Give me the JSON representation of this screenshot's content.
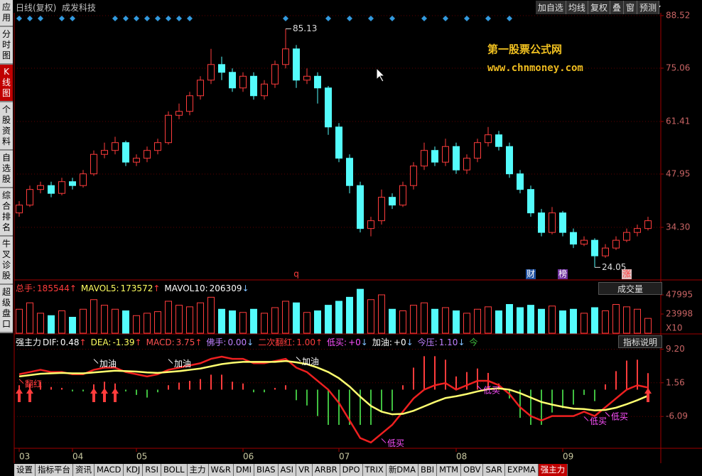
{
  "header": {
    "title": "日线(复权)",
    "stock": "成发科技",
    "buttons": [
      "加自选",
      "均线",
      "复权",
      "叠",
      "窗",
      "预测"
    ]
  },
  "sidebar": [
    "应用",
    "分时图",
    "K线图",
    "个股资料",
    "自选股",
    "综合排名",
    "牛叉诊股",
    "超级盘口"
  ],
  "tabs": [
    "设置",
    "指标平台",
    "资讯",
    "MACD",
    "KDJ",
    "RSI",
    "BOLL",
    "主力",
    "W&R",
    "DMI",
    "BIAS",
    "ASI",
    "VR",
    "ARBR",
    "DPO",
    "TRIX",
    "新DMA",
    "BBI",
    "MTM",
    "OBV",
    "SAR",
    "EXPMA",
    "强主力"
  ],
  "watermark": [
    "第一股票公式网",
    "www.chnmoney.com"
  ],
  "chart_data": [
    {
      "type": "candlestick",
      "up_color": "#ff3c3c",
      "down_color": "#54fcfc",
      "signal_color": "#3399dd",
      "ylim": [
        21.02,
        88.88
      ],
      "yticks": [
        {
          "value": 34.3,
          "label": "34.30"
        },
        47.95,
        61.41,
        75.06,
        88.52
      ],
      "ohlc": [
        [
          38,
          41,
          37,
          40
        ],
        [
          40,
          45,
          39.5,
          44
        ],
        [
          44,
          46,
          43,
          45
        ],
        [
          45,
          46,
          42,
          43
        ],
        [
          43,
          47,
          42.5,
          46
        ],
        [
          46,
          47,
          44,
          45
        ],
        [
          45,
          49,
          44.5,
          48
        ],
        [
          48,
          54,
          47.5,
          53
        ],
        [
          53,
          56,
          52,
          54
        ],
        [
          54,
          57.5,
          53,
          56
        ],
        [
          56,
          56.5,
          50,
          51
        ],
        [
          51,
          53,
          50,
          52
        ],
        [
          52,
          55,
          51,
          54
        ],
        [
          54,
          57,
          53,
          56
        ],
        [
          56,
          64,
          55.5,
          63
        ],
        [
          63,
          66,
          62,
          64
        ],
        [
          64,
          69,
          63,
          68
        ],
        [
          68,
          73,
          67,
          72
        ],
        [
          72,
          80,
          71,
          76
        ],
        [
          76,
          78,
          72,
          74
        ],
        [
          74,
          75,
          69,
          70
        ],
        [
          70,
          74,
          69,
          73
        ],
        [
          73,
          74,
          67,
          68
        ],
        [
          68,
          72,
          67,
          71
        ],
        [
          71,
          77,
          70,
          76
        ],
        [
          76,
          85.13,
          75,
          80
        ],
        [
          80,
          81,
          70,
          72
        ],
        [
          72,
          75,
          71,
          73
        ],
        [
          73,
          74,
          66,
          70
        ],
        [
          70,
          70.5,
          58,
          60
        ],
        [
          60,
          61,
          51,
          52
        ],
        [
          52,
          53,
          43,
          45
        ],
        [
          45,
          46,
          33,
          34
        ],
        [
          34,
          37,
          32,
          36
        ],
        [
          36,
          44,
          35,
          42
        ],
        [
          42,
          43,
          39,
          40
        ],
        [
          40,
          46,
          39.5,
          45
        ],
        [
          45,
          51,
          44,
          50
        ],
        [
          50,
          56,
          49,
          54
        ],
        [
          54,
          55,
          50,
          51
        ],
        [
          51,
          57,
          50,
          55
        ],
        [
          55,
          56,
          48,
          49
        ],
        [
          49,
          53,
          48,
          52
        ],
        [
          52,
          57,
          51,
          56
        ],
        [
          56,
          60,
          55,
          58
        ],
        [
          58,
          59,
          54,
          55
        ],
        [
          55,
          56,
          47,
          48
        ],
        [
          48,
          49,
          43,
          44
        ],
        [
          44,
          45,
          37,
          38
        ],
        [
          38,
          39,
          32,
          33
        ],
        [
          33,
          39.5,
          32.5,
          38
        ],
        [
          38,
          38.5,
          32,
          33
        ],
        [
          33,
          34,
          29,
          30
        ],
        [
          30,
          32,
          29.5,
          31
        ],
        [
          31,
          31.5,
          24.05,
          27
        ],
        [
          27,
          30,
          26.5,
          29
        ],
        [
          29,
          32,
          28.5,
          31
        ],
        [
          31,
          34,
          30.5,
          33
        ],
        [
          33,
          35,
          32,
          34
        ],
        [
          34,
          37,
          33.5,
          36
        ]
      ],
      "high_index": 25,
      "low_index": 54,
      "markers": [
        {
          "label": "q",
          "x": 26,
          "color": "#ff3c3c",
          "bg": "#000000"
        },
        {
          "label": "财",
          "x": 48,
          "color": "#ffffff",
          "bg": "#2050a0"
        },
        {
          "label": "榜",
          "x": 51,
          "color": "#ffffff",
          "bg": "#7030a0"
        },
        {
          "label": "涨",
          "x": 57,
          "color": "#ff3c3c",
          "bg": "#e0c0c0"
        }
      ],
      "signal_days": [
        0,
        1,
        2,
        4,
        5,
        9,
        10,
        11,
        12,
        13,
        14,
        15,
        16,
        25,
        29,
        31,
        33,
        35,
        38,
        40,
        42,
        44,
        46
      ]
    },
    {
      "type": "bar",
      "ylim": [
        0,
        64000
      ],
      "yticks": [
        23998,
        47995
      ],
      "unit": "X10",
      "selector": "成交量",
      "legend": [
        {
          "label": "总手:",
          "value": 185544,
          "trend": "↑",
          "color": "#ff3c3c"
        },
        {
          "label": "MAVOL5:",
          "value": 173572,
          "trend": "↑",
          "color": "#ffff60"
        },
        {
          "label": "MAVOL10:",
          "value": 206309,
          "trend": "↓",
          "color": "#ffffff"
        }
      ],
      "values": [
        30000,
        38000,
        25000,
        22000,
        28000,
        20000,
        30000,
        42000,
        35000,
        30000,
        28000,
        22000,
        25000,
        27000,
        40000,
        35000,
        33000,
        38000,
        45000,
        30000,
        28000,
        26000,
        30000,
        25000,
        32000,
        40000,
        38000,
        26000,
        28000,
        35000,
        40000,
        45000,
        55000,
        42000,
        48000,
        30000,
        28000,
        35000,
        38000,
        30000,
        32000,
        28000,
        25000,
        30000,
        33000,
        28000,
        36000,
        32000,
        35000,
        30000,
        34000,
        28000,
        30000,
        25000,
        32000,
        28000,
        36000,
        33000,
        30000,
        18554
      ]
    },
    {
      "type": "line",
      "help": "指标说明",
      "ylim": [
        -13.16,
        11.37
      ],
      "yticks": [
        -6.09,
        1.56,
        {
          "value": 9.2,
          "label": "9.20"
        }
      ],
      "legend": [
        {
          "label": "强主力",
          "color": "#ffffff"
        },
        {
          "label": "DIF:",
          "value": 0.48,
          "trend": "↑",
          "color": "#ffffff"
        },
        {
          "label": "DEA:",
          "value": -1.39,
          "trend": "↑",
          "color": "#ffff60"
        },
        {
          "label": "MACD:",
          "value": 3.75,
          "trend": "↑",
          "color": "#ff5050"
        },
        {
          "label": "佛手:",
          "value": "0.00",
          "trend": "↓",
          "color": "#c080ff"
        },
        {
          "label": "二次翻红:",
          "value": "1.00",
          "trend": "↑",
          "color": "#ff3c3c"
        },
        {
          "label": "低买:",
          "value": "+0",
          "trend": "↓",
          "color": "#ff50ff"
        },
        {
          "label": "加油:",
          "value": "+0",
          "trend": "↓",
          "color": "#ffffff"
        },
        {
          "label": "今压:",
          "value": "1.10",
          "trend": "↓",
          "color": "#c080ff"
        },
        {
          "label": "今",
          "color": "#40c040"
        }
      ],
      "series": [
        {
          "color": "#ee2020",
          "values": [
            3.5,
            4,
            4.5,
            4,
            4,
            3.5,
            3.5,
            4.5,
            5,
            5,
            4,
            3.5,
            3,
            3.5,
            4.5,
            5,
            5.5,
            6,
            7,
            7.5,
            7,
            7,
            6,
            6,
            6.5,
            7,
            5,
            4,
            2,
            0,
            -3,
            -7,
            -11,
            -12,
            -10,
            -8,
            -5,
            -2,
            0,
            1,
            1.5,
            0,
            1,
            2,
            2,
            1,
            -1,
            -4,
            -6,
            -7,
            -6,
            -6,
            -6,
            -5,
            -6,
            -4,
            -2,
            0,
            1,
            0.48
          ]
        },
        {
          "color": "#ffff70",
          "values": [
            3,
            3.3,
            3.6,
            3.7,
            3.8,
            3.7,
            3.7,
            3.9,
            4.1,
            4.3,
            4.2,
            4.1,
            3.9,
            3.8,
            4,
            4.2,
            4.5,
            4.8,
            5.3,
            5.8,
            6.1,
            6.3,
            6.3,
            6.3,
            6.3,
            6.5,
            6.2,
            5.8,
            5,
            4,
            2.6,
            0.7,
            -1.6,
            -3.7,
            -5,
            -5.6,
            -5.5,
            -4.8,
            -3.8,
            -2.8,
            -1.9,
            -1.5,
            -1,
            -0.4,
            0.1,
            0.3,
            0,
            -0.8,
            -1.8,
            -2.8,
            -3.4,
            -3.9,
            -4.3,
            -4.4,
            -4.7,
            -4.6,
            -4.1,
            -3.3,
            -2.4,
            -1.39
          ]
        }
      ],
      "histogram": [
        1,
        1.4,
        1.8,
        0.6,
        0.4,
        -0.4,
        -0.4,
        1.2,
        1.8,
        1.4,
        -0.4,
        -1.2,
        -1.8,
        -0.6,
        1,
        1.6,
        2,
        2.4,
        3.4,
        3.4,
        1.8,
        1.4,
        -0.6,
        -0.6,
        0.4,
        1,
        -2.4,
        -3.6,
        -6,
        -8,
        -8,
        -8,
        -8,
        -8,
        -5,
        -4.8,
        1,
        5,
        7.6,
        7.6,
        6.8,
        3,
        4,
        4.8,
        3.8,
        1.4,
        -2,
        -6.4,
        -8,
        -8,
        -5.2,
        -4.2,
        -3.4,
        -1.2,
        -2.6,
        1.2,
        4.2,
        6.6,
        6.8,
        3.75
      ],
      "signals": [
        {
          "label": "加油",
          "x": 7,
          "color": "#ffffff"
        },
        {
          "label": "加油",
          "x": 14,
          "color": "#ffffff"
        },
        {
          "label": "加油",
          "x": 26,
          "color": "#ffffff"
        },
        {
          "label": "低买",
          "x": 34,
          "color": "#ff50ff"
        },
        {
          "label": "低买",
          "x": 43,
          "color": "#ff50ff"
        },
        {
          "label": "低买",
          "x": 53,
          "color": "#ff50ff"
        },
        {
          "label": "低买",
          "x": 55,
          "color": "#ff50ff"
        },
        {
          "label": "翻红",
          "x": 0,
          "color": "#ff3c3c"
        }
      ],
      "arrow_days": [
        0,
        1,
        7,
        8,
        9,
        59
      ],
      "xticks": [
        {
          "value": 0,
          "label": "03"
        },
        {
          "value": 5,
          "label": "04"
        },
        {
          "value": 11,
          "label": "05"
        },
        {
          "value": 21,
          "label": "06"
        },
        {
          "value": 30,
          "label": "07"
        },
        {
          "value": 41,
          "label": "08"
        },
        {
          "value": 51,
          "label": "09"
        }
      ]
    }
  ]
}
